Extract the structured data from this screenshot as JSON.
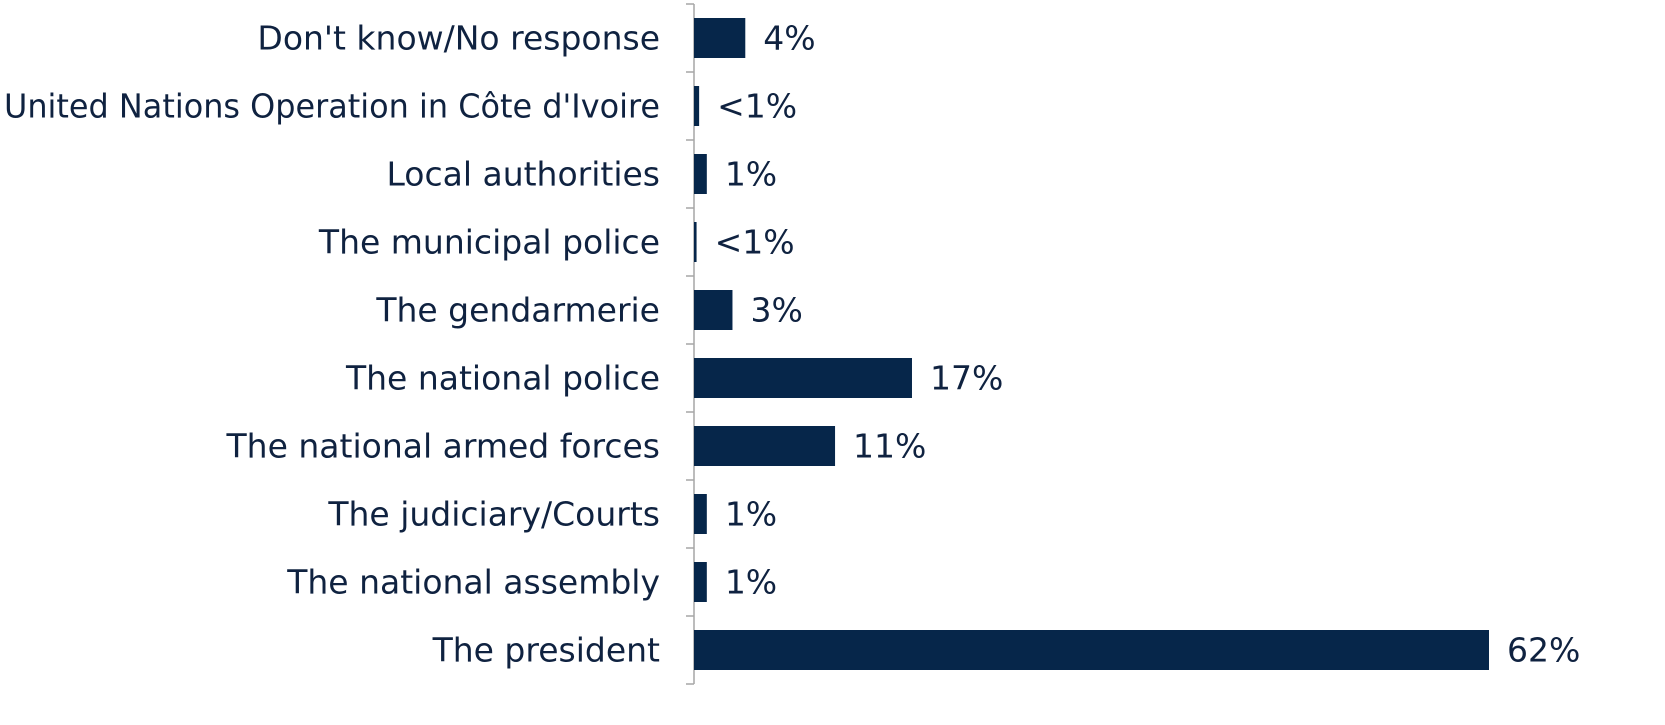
{
  "chart_data": {
    "type": "bar",
    "orientation": "horizontal",
    "categories": [
      "Don't know/No response",
      "United Nations Operation in Côte d'Ivoire",
      "Local authorities",
      "The municipal police",
      "The gendarmerie",
      "The national police",
      "The national armed forces",
      "The judiciary/Courts",
      "The national assembly",
      "The president"
    ],
    "values": [
      4,
      0.4,
      1,
      0.2,
      3,
      17,
      11,
      1,
      1,
      62
    ],
    "value_labels": [
      "4%",
      "<1%",
      "1%",
      "<1%",
      "3%",
      "17%",
      "11%",
      "1%",
      "1%",
      "62%"
    ],
    "xlim": [
      0,
      62
    ],
    "grid": false,
    "legend": "none",
    "bar_color": "#06264a",
    "text_color": "#0f2240",
    "axis_color": "#a6a6a6"
  }
}
